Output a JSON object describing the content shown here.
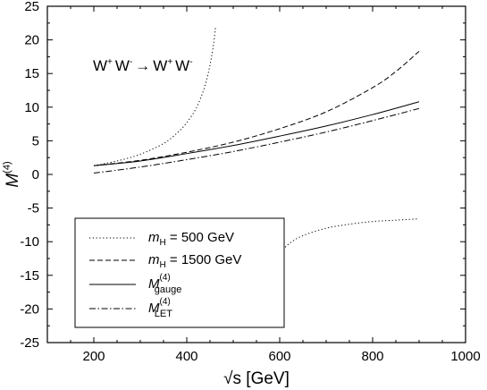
{
  "chart_data": {
    "type": "line",
    "xlabel": "√s [GeV]",
    "ylabel": "M",
    "ylabel_sup": "(4)",
    "xlim": [
      100,
      1000
    ],
    "ylim": [
      -25,
      25
    ],
    "xticks": [
      200,
      400,
      600,
      800,
      1000
    ],
    "yticks": [
      -25,
      -20,
      -15,
      -10,
      -5,
      0,
      5,
      10,
      15,
      20,
      25
    ],
    "grid": false,
    "legend_position": "bottom-left",
    "annotation": {
      "w1": "W",
      "w1_sup": "+",
      "w2": "W",
      "w2_sup": "-",
      "arrow": "→",
      "w3": "W",
      "w3_sup": "+",
      "w4": "W",
      "w4_sup": "-"
    },
    "series": [
      {
        "name_italic": "m",
        "name_sub": "H",
        "name_rest": " = 500 GeV",
        "style": "dotted",
        "segments": [
          [
            [
              200,
              1.3
            ],
            [
              250,
              2.0
            ],
            [
              300,
              3.0
            ],
            [
              350,
              4.6
            ],
            [
              380,
              6.2
            ],
            [
              400,
              7.7
            ],
            [
              420,
              9.8
            ],
            [
              435,
              12.3
            ],
            [
              445,
              14.7
            ],
            [
              452,
              17.0
            ],
            [
              458,
              19.5
            ],
            [
              462,
              22.0
            ]
          ],
          [
            [
              597,
              -12.5
            ],
            [
              600,
              -11.8
            ],
            [
              620,
              -10.3
            ],
            [
              650,
              -9.1
            ],
            [
              700,
              -8.0
            ],
            [
              750,
              -7.4
            ],
            [
              800,
              -7.0
            ],
            [
              850,
              -6.8
            ],
            [
              900,
              -6.6
            ]
          ]
        ]
      },
      {
        "name_italic": "m",
        "name_sub": "H",
        "name_rest": " = 1500 GeV",
        "style": "dashed",
        "segments": [
          [
            [
              200,
              1.3
            ],
            [
              300,
              2.1
            ],
            [
              400,
              3.3
            ],
            [
              500,
              4.8
            ],
            [
              600,
              6.8
            ],
            [
              700,
              9.3
            ],
            [
              800,
              12.9
            ],
            [
              850,
              15.3
            ],
            [
              900,
              18.3
            ]
          ]
        ]
      },
      {
        "name_italic": "M",
        "name_sup": "(4)",
        "name_sub": "gauge",
        "style": "solid",
        "segments": [
          [
            [
              200,
              1.3
            ],
            [
              300,
              2.0
            ],
            [
              400,
              3.1
            ],
            [
              500,
              4.3
            ],
            [
              600,
              5.7
            ],
            [
              700,
              7.2
            ],
            [
              800,
              8.9
            ],
            [
              900,
              10.8
            ]
          ]
        ]
      },
      {
        "name_italic": "M",
        "name_sup": "(4)",
        "name_sub": "LET",
        "style": "dashdot",
        "segments": [
          [
            [
              200,
              0.2
            ],
            [
              300,
              1.1
            ],
            [
              400,
              2.2
            ],
            [
              500,
              3.4
            ],
            [
              600,
              4.8
            ],
            [
              700,
              6.3
            ],
            [
              800,
              8.0
            ],
            [
              900,
              9.8
            ]
          ]
        ]
      }
    ]
  }
}
